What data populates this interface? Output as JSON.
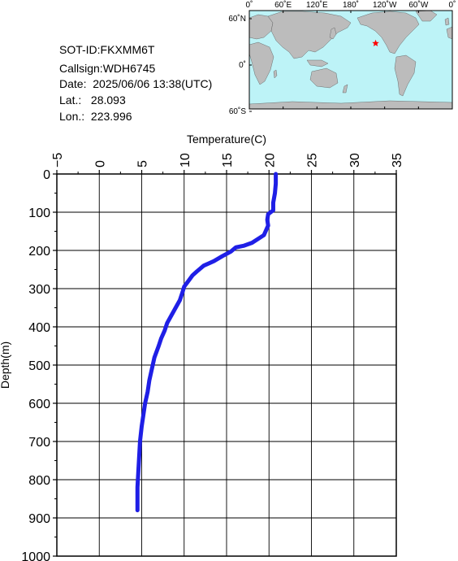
{
  "info": {
    "sot_id": "SOT-ID:FKXMM6T",
    "callsign": "Callsign:WDH6745",
    "date": "Date:  2025/06/06 13:38(UTC)",
    "lat": "Lat.:   28.093",
    "lon": "Lon.:  223.996"
  },
  "map": {
    "lon_labels": [
      "0˚",
      "60˚E",
      "120˚E",
      "180˚",
      "120˚W",
      "60˚W",
      "0˚"
    ],
    "lat_labels": [
      "60˚N",
      "0˚",
      "60˚S"
    ],
    "marker_lat": 28.093,
    "marker_lon": 223.996,
    "ocean_color": "#bdf3f7",
    "land_color": "#bcbcbc",
    "marker_color": "#ff0000",
    "marker_icon": "star-icon"
  },
  "chart_data": {
    "type": "line",
    "xlabel": "Temperature(C)",
    "ylabel": "Depth(m)",
    "xlim": [
      -5,
      35
    ],
    "ylim": [
      0,
      1000
    ],
    "y_inverted": true,
    "x_axis_position": "top",
    "grid": true,
    "x_ticks": [
      -5,
      0,
      5,
      10,
      15,
      20,
      25,
      30,
      35
    ],
    "y_ticks": [
      0,
      100,
      200,
      300,
      400,
      500,
      600,
      700,
      800,
      900,
      1000
    ],
    "line_color": "#1f1fe6",
    "series": [
      {
        "x": [
          20.8,
          20.8,
          20.7,
          20.5,
          20.5,
          19.9,
          19.8,
          19.9,
          19.7,
          19.4,
          18.0,
          17.0,
          16.1,
          15.5,
          14.5,
          13.5,
          12.3,
          11.5,
          11.0,
          10.5,
          10.0,
          9.8,
          9.5,
          9.0,
          8.5,
          8.0,
          7.7,
          7.3,
          7.0,
          6.5,
          6.2,
          5.9,
          5.7,
          5.4,
          5.2,
          5.0,
          4.8,
          4.7,
          4.6,
          4.5,
          4.5,
          4.5
        ],
        "y": [
          0,
          25,
          50,
          75,
          95,
          105,
          120,
          135,
          145,
          160,
          180,
          188,
          192,
          203,
          215,
          228,
          240,
          255,
          265,
          280,
          295,
          310,
          330,
          350,
          370,
          390,
          410,
          430,
          450,
          480,
          510,
          540,
          570,
          600,
          630,
          660,
          700,
          740,
          780,
          820,
          850,
          880
        ]
      }
    ]
  }
}
